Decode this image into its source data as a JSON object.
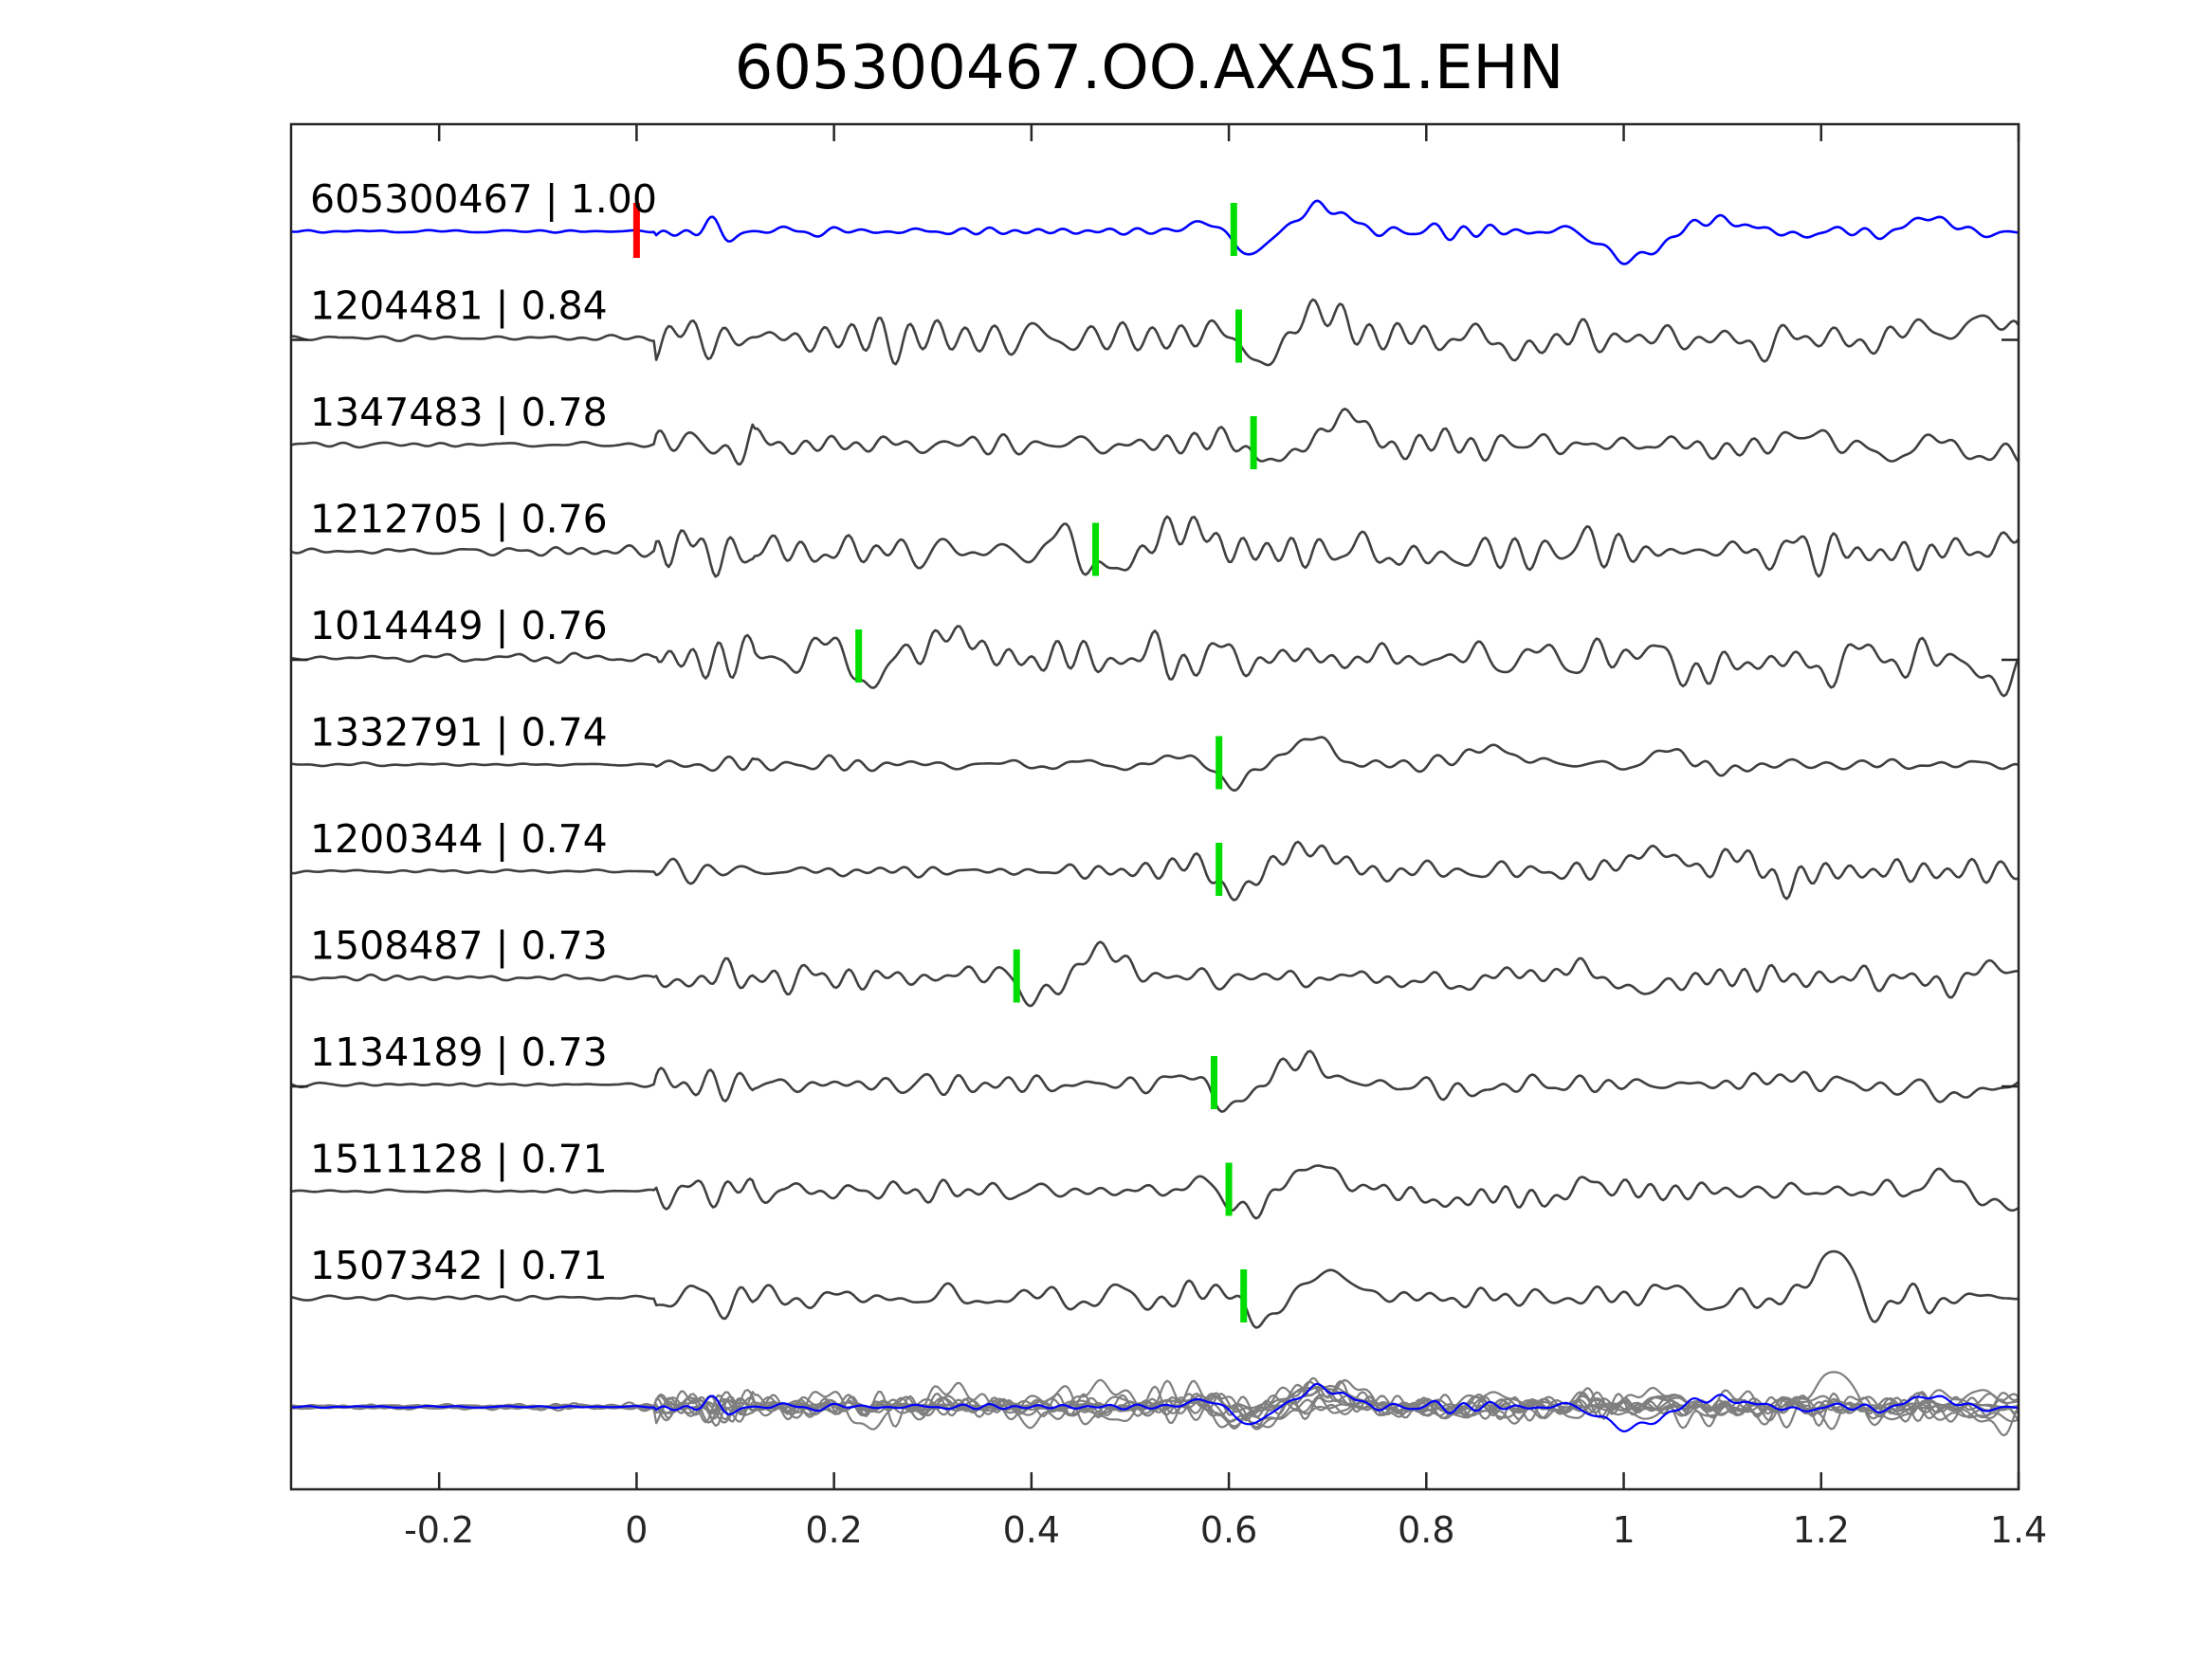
{
  "chart_data": {
    "type": "line",
    "title": "605300467.OO.AXAS1.EHN",
    "xlabel": "",
    "ylabel": "",
    "xlim": [
      -0.35,
      1.4
    ],
    "xticks": [
      -0.2,
      0,
      0.2,
      0.4,
      0.6,
      0.8,
      1,
      1.2,
      1.4
    ],
    "xtick_labels": [
      "-0.2",
      "0",
      "0.2",
      "0.4",
      "0.6",
      "0.8",
      "1",
      "1.2",
      "1.4"
    ],
    "grid": false,
    "colors": {
      "master": "#0000ff",
      "template": "#404040",
      "stack_template": "#7f7f7f",
      "reference_pick": "#ff0000",
      "pick": "#00dd00"
    },
    "reference_pick": 0.0,
    "traces": [
      {
        "label": "605300467 | 1.00",
        "id": "605300467",
        "cc": 1.0,
        "pick": 0.605,
        "master": true,
        "amp": 0.5,
        "seed": 11
      },
      {
        "label": "1204481 | 0.84",
        "id": "1204481",
        "cc": 0.84,
        "pick": 0.61,
        "amp": 1.2,
        "seed": 23
      },
      {
        "label": "1347483 | 0.78",
        "id": "1347483",
        "cc": 0.78,
        "pick": 0.625,
        "amp": 0.9,
        "seed": 37
      },
      {
        "label": "1212705 | 0.76",
        "id": "1212705",
        "cc": 0.76,
        "pick": 0.465,
        "amp": 1.3,
        "seed": 41
      },
      {
        "label": "1014449 | 0.76",
        "id": "1014449",
        "cc": 0.76,
        "pick": 0.225,
        "amp": 1.3,
        "seed": 53
      },
      {
        "label": "1332791 | 0.74",
        "id": "1332791",
        "cc": 0.74,
        "pick": 0.59,
        "amp": 0.5,
        "seed": 67
      },
      {
        "label": "1200344 | 0.74",
        "id": "1200344",
        "cc": 0.74,
        "pick": 0.59,
        "amp": 0.7,
        "seed": 71
      },
      {
        "label": "1508487 | 0.73",
        "id": "1508487",
        "cc": 0.73,
        "pick": 0.385,
        "amp": 1.0,
        "seed": 83
      },
      {
        "label": "1134189 | 0.73",
        "id": "1134189",
        "cc": 0.73,
        "pick": 0.585,
        "amp": 0.8,
        "seed": 97
      },
      {
        "label": "1511128 | 0.71",
        "id": "1511128",
        "cc": 0.71,
        "pick": 0.6,
        "amp": 0.6,
        "seed": 101
      },
      {
        "label": "1507342 | 0.71",
        "id": "1507342",
        "cc": 0.71,
        "pick": 0.615,
        "amp": 0.9,
        "seed": 113
      }
    ]
  }
}
